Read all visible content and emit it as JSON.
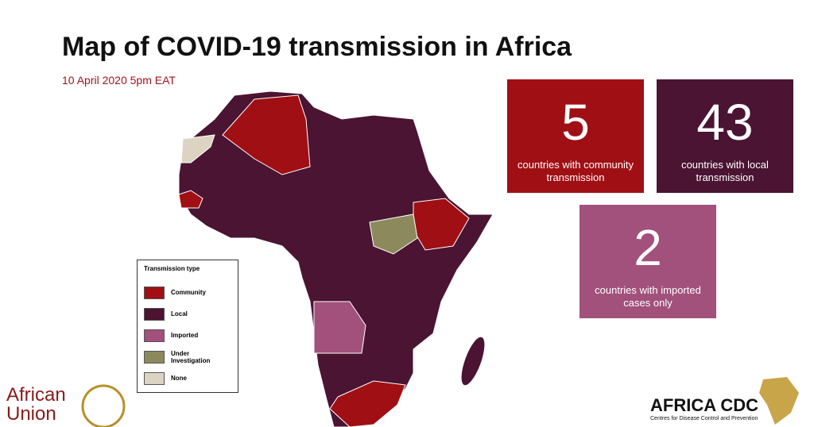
{
  "header": {
    "title": "Map of COVID-19 transmission in Africa",
    "subtitle": "10 April 2020 5pm EAT"
  },
  "cards": [
    {
      "value": 5,
      "label": "countries with community transmission",
      "color": "#a00f14"
    },
    {
      "value": 43,
      "label": "countries with local transmission",
      "color": "#4a1432"
    },
    {
      "value": 2,
      "label": "countries with imported cases only",
      "color": "#a2507c"
    }
  ],
  "legend": {
    "title": "Transmission type",
    "items": [
      {
        "label": "Community",
        "color": "#a00f14"
      },
      {
        "label": "Local",
        "color": "#4a1432"
      },
      {
        "label": "Imported",
        "color": "#a2507c"
      },
      {
        "label": "Under Investigation",
        "color": "#8c8a5c"
      },
      {
        "label": "None",
        "color": "#ddd3c2"
      }
    ]
  },
  "logos": {
    "left": "African Union",
    "right": "AFRICA CDC",
    "right_sub": "Centres for Disease Control and Prevention"
  }
}
